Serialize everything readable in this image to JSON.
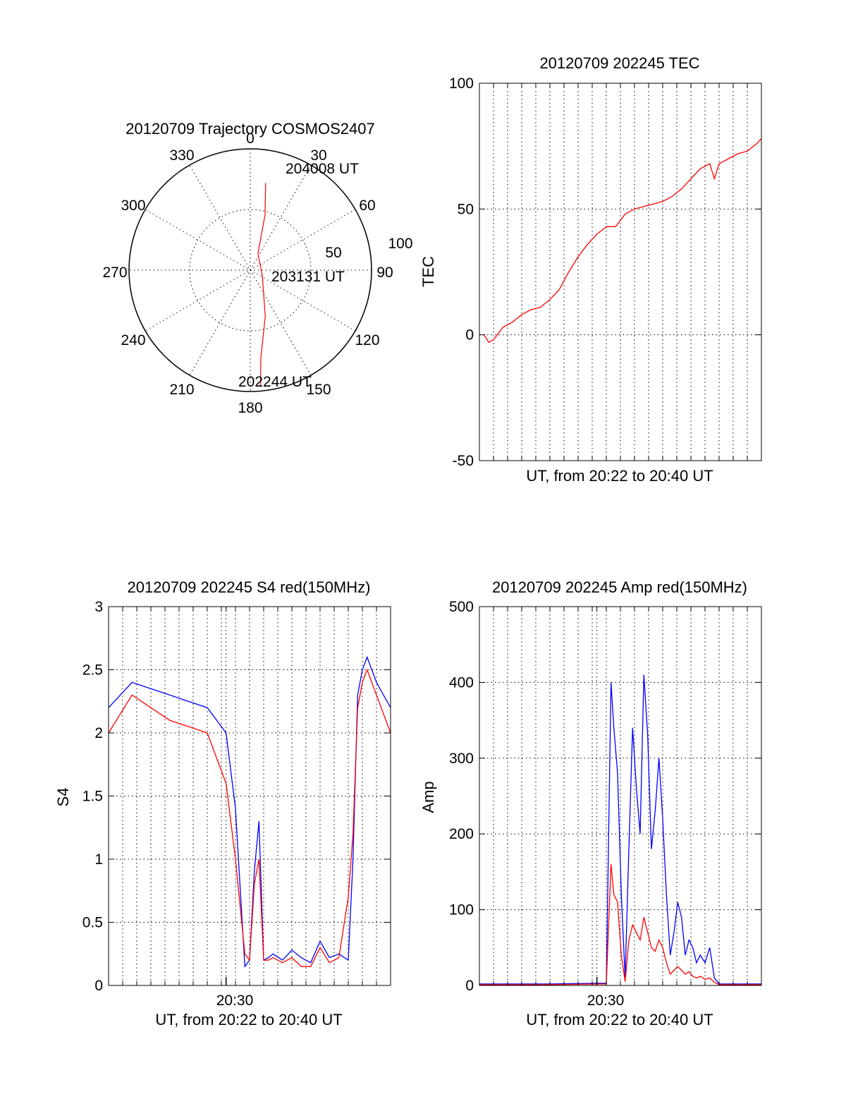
{
  "colors": {
    "red": "#ff0000",
    "blue": "#0000ff",
    "axis": "#000000",
    "grid": "#000000"
  },
  "chart_data": [
    {
      "id": "trajectory",
      "type": "polar",
      "title": "20120709 Trajectory COSMOS2407",
      "azimuth_labels": [
        "0",
        "30",
        "60",
        "90",
        "120",
        "150",
        "180",
        "210",
        "240",
        "270",
        "300",
        "330"
      ],
      "radius_labels": [
        "50",
        "100"
      ],
      "zenith_max": 100,
      "track": [
        {
          "az": 10,
          "zen": 73
        },
        {
          "az": 15,
          "zen": 47
        },
        {
          "az": 25,
          "zen": 15
        },
        {
          "az": 115,
          "zen": 11
        },
        {
          "az": 162,
          "zen": 40
        },
        {
          "az": 173,
          "zen": 72
        },
        {
          "az": 175,
          "zen": 96
        }
      ],
      "annotations": [
        "204008 UT",
        "203131 UT",
        "202244 UT"
      ]
    },
    {
      "id": "tec",
      "type": "line",
      "title": "20120709 202245 TEC",
      "xlabel": "UT, from 20:22 to 20:40 UT",
      "ylabel": "TEC",
      "xlim": [
        20.375,
        20.675
      ],
      "ylim": [
        -50,
        100
      ],
      "yticks": [
        "-50",
        "0",
        "50",
        "100"
      ],
      "grid": true,
      "series": [
        {
          "color": "red",
          "x": [
            20.38,
            20.385,
            20.39,
            20.4,
            20.41,
            20.42,
            20.43,
            20.44,
            20.45,
            20.46,
            20.47,
            20.48,
            20.49,
            20.5,
            20.51,
            20.52,
            20.53,
            20.54,
            20.55,
            20.56,
            20.57,
            20.58,
            20.59,
            20.6,
            20.61,
            20.62,
            20.625,
            20.63,
            20.635,
            20.64,
            20.65,
            20.66,
            20.67,
            20.675
          ],
          "y": [
            0,
            -3,
            -2,
            3,
            5,
            8,
            10,
            11,
            14,
            18,
            25,
            31,
            36,
            40,
            43,
            43,
            48,
            50,
            51,
            52,
            53,
            55,
            58,
            62,
            66,
            68,
            62,
            68,
            69,
            70,
            72,
            73,
            76,
            78
          ]
        }
      ]
    },
    {
      "id": "s4",
      "type": "line",
      "title": "20120709 202245 S4 red(150MHz)",
      "xlabel": "UT, from 20:22 to 20:40 UT",
      "ylabel": "S4",
      "xlim": [
        20.375,
        20.675
      ],
      "ylim": [
        0,
        3
      ],
      "xtick_label": "20:30",
      "yticks": [
        "0",
        "0.5",
        "1",
        "1.5",
        "2",
        "2.5",
        "3"
      ],
      "grid": true,
      "series": [
        {
          "color": "blue",
          "x": [
            20.375,
            20.4,
            20.44,
            20.48,
            20.5,
            20.51,
            20.52,
            20.525,
            20.53,
            20.535,
            20.54,
            20.545,
            20.55,
            20.56,
            20.57,
            20.58,
            20.59,
            20.6,
            20.61,
            20.62,
            20.63,
            20.635,
            20.64,
            20.645,
            20.65,
            20.66,
            20.675
          ],
          "y": [
            2.2,
            2.4,
            2.3,
            2.2,
            2.0,
            1.4,
            0.15,
            0.2,
            0.9,
            1.3,
            0.2,
            0.22,
            0.25,
            0.2,
            0.28,
            0.22,
            0.18,
            0.35,
            0.22,
            0.25,
            0.2,
            1.0,
            2.3,
            2.5,
            2.6,
            2.4,
            2.2
          ]
        },
        {
          "color": "red",
          "x": [
            20.375,
            20.4,
            20.44,
            20.48,
            20.5,
            20.51,
            20.52,
            20.525,
            20.53,
            20.535,
            20.54,
            20.545,
            20.55,
            20.56,
            20.57,
            20.58,
            20.59,
            20.6,
            20.61,
            20.62,
            20.63,
            20.635,
            20.64,
            20.645,
            20.65,
            20.66,
            20.675
          ],
          "y": [
            2.0,
            2.3,
            2.1,
            2.0,
            1.6,
            1.0,
            0.25,
            0.2,
            0.8,
            1.0,
            0.2,
            0.2,
            0.22,
            0.18,
            0.22,
            0.15,
            0.15,
            0.3,
            0.18,
            0.22,
            0.7,
            1.2,
            2.2,
            2.4,
            2.5,
            2.3,
            2.0
          ]
        }
      ]
    },
    {
      "id": "amp",
      "type": "line",
      "title": "20120709 202245 Amp red(150MHz)",
      "xlabel": "UT, from 20:22 to 20:40 UT",
      "ylabel": "Amp",
      "xlim": [
        20.375,
        20.675
      ],
      "ylim": [
        0,
        500
      ],
      "xtick_label": "20:30",
      "yticks": [
        "0",
        "100",
        "200",
        "300",
        "400",
        "500"
      ],
      "grid": true,
      "series": [
        {
          "color": "blue",
          "x": [
            20.375,
            20.45,
            20.51,
            20.515,
            20.518,
            20.522,
            20.526,
            20.53,
            20.534,
            20.538,
            20.542,
            20.546,
            20.55,
            20.554,
            20.558,
            20.562,
            20.566,
            20.57,
            20.574,
            20.578,
            20.582,
            20.586,
            20.59,
            20.594,
            20.598,
            20.602,
            20.606,
            20.61,
            20.615,
            20.62,
            20.625,
            20.63,
            20.675
          ],
          "y": [
            2,
            2,
            3,
            400,
            340,
            280,
            120,
            10,
            180,
            340,
            260,
            200,
            410,
            330,
            180,
            230,
            300,
            220,
            120,
            40,
            70,
            110,
            90,
            40,
            60,
            50,
            30,
            40,
            30,
            50,
            10,
            2,
            2
          ]
        },
        {
          "color": "red",
          "x": [
            20.375,
            20.45,
            20.51,
            20.515,
            20.518,
            20.522,
            20.526,
            20.53,
            20.534,
            20.538,
            20.542,
            20.546,
            20.55,
            20.554,
            20.558,
            20.562,
            20.566,
            20.57,
            20.574,
            20.578,
            20.582,
            20.586,
            20.59,
            20.594,
            20.598,
            20.602,
            20.606,
            20.61,
            20.615,
            20.62,
            20.625,
            20.63,
            20.675
          ],
          "y": [
            1,
            1,
            2,
            160,
            120,
            110,
            40,
            5,
            60,
            80,
            70,
            60,
            90,
            70,
            50,
            45,
            60,
            50,
            30,
            15,
            20,
            25,
            20,
            15,
            18,
            12,
            10,
            12,
            8,
            10,
            4,
            1,
            1
          ]
        }
      ]
    }
  ]
}
